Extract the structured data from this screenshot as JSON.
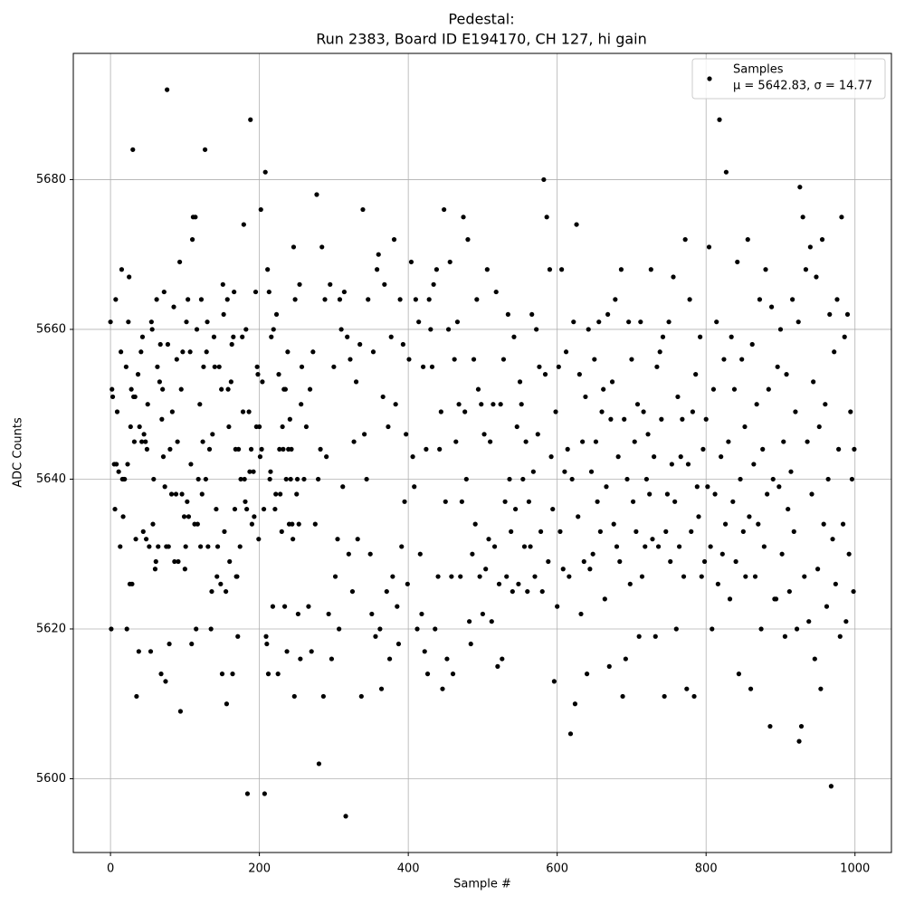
{
  "chart_data": {
    "type": "scatter",
    "title": "Pedestal:",
    "subtitle": "Run 2383, Board ID E194170, CH 127, hi gain",
    "xlabel": "Sample #",
    "ylabel": "ADC Counts",
    "xlim": [
      -49.95,
      1048.95
    ],
    "ylim": [
      5590.15,
      5696.85
    ],
    "xticks": [
      0,
      200,
      400,
      600,
      800,
      1000
    ],
    "yticks": [
      5600,
      5620,
      5640,
      5660,
      5680
    ],
    "grid": true,
    "legend": "upper right",
    "annotation": "μ = 5642.83, σ = 14.77",
    "x": [
      0,
      1,
      2,
      3,
      5,
      6,
      7,
      8,
      9,
      11,
      13,
      14,
      15,
      16,
      17,
      18,
      19,
      21,
      22,
      23,
      24,
      25,
      26,
      27,
      28,
      29,
      30,
      31,
      32,
      33,
      34,
      35,
      37,
      38,
      39,
      41,
      42,
      43,
      44,
      45,
      47,
      48,
      49,
      50,
      52,
      54,
      55,
      56,
      57,
      58,
      60,
      61,
      62,
      63,
      64,
      66,
      67,
      68,
      69,
      70,
      71,
      72,
      73,
      74,
      75,
      76,
      77,
      78,
      79,
      80,
      82,
      83,
      85,
      86,
      88,
      89,
      90,
      91,
      93,
      94,
      95,
      96,
      97,
      99,
      100,
      101,
      102,
      103,
      104,
      105,
      107,
      108,
      109,
      110,
      111,
      113,
      114,
      115,
      116,
      117,
      118,
      120,
      121,
      122,
      123,
      124,
      125,
      127,
      128,
      129,
      130,
      131,
      133,
      135,
      136,
      137,
      139,
      140,
      142,
      143,
      144,
      146,
      148,
      149,
      150,
      151,
      152,
      153,
      155,
      156,
      157,
      158,
      159,
      160,
      162,
      163,
      164,
      165,
      166,
      167,
      168,
      169,
      170,
      171,
      172,
      174,
      175,
      177,
      178,
      179,
      180,
      181,
      182,
      183,
      184,
      186,
      187,
      188,
      189,
      190,
      192,
      193,
      195,
      196,
      197,
      198,
      199,
      200,
      201,
      202,
      203,
      204,
      206,
      207,
      208,
      209,
      210,
      211,
      212,
      213,
      214,
      215,
      216,
      218,
      219,
      221,
      222,
      223,
      225,
      226,
      227,
      228,
      230,
      231,
      232,
      233,
      234,
      235,
      236,
      237,
      238,
      239,
      240,
      241,
      242,
      243,
      244,
      245,
      246,
      247,
      248,
      250,
      251,
      252,
      253,
      254,
      255,
      256,
      257,
      260,
      263,
      266,
      268,
      270,
      272,
      275,
      277,
      279,
      280,
      282,
      284,
      286,
      288,
      290,
      293,
      295,
      297,
      300,
      302,
      305,
      307,
      308,
      310,
      312,
      314,
      316,
      318,
      320,
      322,
      325,
      327,
      330,
      332,
      335,
      337,
      339,
      341,
      344,
      346,
      349,
      351,
      353,
      356,
      358,
      360,
      362,
      364,
      366,
      368,
      371,
      373,
      375,
      377,
      379,
      381,
      383,
      385,
      387,
      389,
      391,
      393,
      395,
      397,
      399,
      401,
      404,
      406,
      408,
      410,
      412,
      414,
      416,
      418,
      420,
      422,
      424,
      426,
      428,
      430,
      432,
      434,
      436,
      438,
      440,
      442,
      444,
      446,
      448,
      450,
      452,
      454,
      456,
      458,
      460,
      462,
      464,
      466,
      468,
      470,
      472,
      474,
      476,
      478,
      480,
      482,
      484,
      486,
      488,
      490,
      492,
      494,
      496,
      498,
      500,
      502,
      504,
      506,
      508,
      510,
      512,
      514,
      516,
      518,
      520,
      522,
      524,
      526,
      528,
      530,
      532,
      534,
      536,
      538,
      540,
      542,
      544,
      546,
      548,
      550,
      552,
      554,
      556,
      558,
      560,
      562,
      564,
      566,
      568,
      570,
      572,
      574,
      576,
      578,
      580,
      582,
      584,
      586,
      588,
      590,
      592,
      594,
      596,
      598,
      600,
      602,
      604,
      606,
      608,
      610,
      612,
      614,
      616,
      618,
      620,
      622,
      624,
      626,
      628,
      630,
      632,
      634,
      636,
      638,
      640,
      642,
      644,
      646,
      648,
      650,
      652,
      654,
      656,
      658,
      660,
      662,
      664,
      666,
      668,
      670,
      672,
      674,
      676,
      678,
      680,
      682,
      684,
      686,
      688,
      690,
      692,
      694,
      696,
      698,
      700,
      702,
      704,
      706,
      708,
      710,
      712,
      714,
      716,
      718,
      720,
      722,
      724,
      726,
      728,
      730,
      732,
      734,
      736,
      738,
      740,
      742,
      744,
      746,
      748,
      750,
      752,
      754,
      756,
      758,
      760,
      762,
      764,
      766,
      768,
      770,
      772,
      774,
      776,
      778,
      780,
      782,
      784,
      786,
      788,
      790,
      792,
      794,
      796,
      798,
      800,
      802,
      804,
      806,
      808,
      810,
      812,
      814,
      816,
      818,
      820,
      822,
      824,
      826,
      827,
      830,
      832,
      834,
      836,
      838,
      840,
      842,
      844,
      846,
      848,
      850,
      852,
      853,
      856,
      858,
      860,
      862,
      864,
      866,
      868,
      870,
      872,
      874,
      876,
      878,
      880,
      882,
      884,
      886,
      888,
      890,
      892,
      894,
      896,
      898,
      900,
      902,
      904,
      906,
      908,
      910,
      912,
      914,
      916,
      918,
      920,
      922,
      924,
      925,
      926,
      928,
      930,
      932,
      934,
      936,
      938,
      940,
      942,
      944,
      946,
      948,
      950,
      952,
      954,
      956,
      958,
      960,
      962,
      964,
      966,
      968,
      970,
      972,
      974,
      976,
      978,
      980,
      982,
      984,
      986,
      988,
      990,
      992,
      994,
      996,
      998,
      999
    ],
    "series": [
      {
        "name": "Samples",
        "color": "#000000",
        "values": [
          5661,
          5620,
          5652,
          5651,
          5642,
          5636,
          5664,
          5642,
          5649,
          5641,
          5631,
          5657,
          5668,
          5640,
          5635,
          5640,
          5640,
          5655,
          5620,
          5642,
          5661,
          5667,
          5626,
          5647,
          5652,
          5626,
          5684,
          5651,
          5645,
          5651,
          5632,
          5611,
          5654,
          5617,
          5647,
          5657,
          5645,
          5659,
          5633,
          5646,
          5645,
          5632,
          5644,
          5650,
          5631,
          5617,
          5661,
          5660,
          5634,
          5640,
          5628,
          5629,
          5664,
          5655,
          5631,
          5653,
          5658,
          5614,
          5648,
          5652,
          5643,
          5665,
          5639,
          5613,
          5631,
          5692,
          5658,
          5631,
          5618,
          5644,
          5638,
          5649,
          5663,
          5629,
          5638,
          5656,
          5645,
          5629,
          5669,
          5609,
          5652,
          5638,
          5657,
          5635,
          5628,
          5631,
          5661,
          5637,
          5664,
          5635,
          5657,
          5642,
          5618,
          5672,
          5675,
          5634,
          5675,
          5620,
          5660,
          5634,
          5640,
          5650,
          5631,
          5664,
          5638,
          5645,
          5655,
          5684,
          5640,
          5657,
          5661,
          5631,
          5644,
          5620,
          5625,
          5646,
          5659,
          5655,
          5636,
          5627,
          5631,
          5655,
          5626,
          5652,
          5614,
          5666,
          5662,
          5633,
          5625,
          5610,
          5664,
          5652,
          5647,
          5629,
          5653,
          5658,
          5614,
          5659,
          5665,
          5636,
          5644,
          5627,
          5627,
          5619,
          5644,
          5631,
          5640,
          5659,
          5649,
          5674,
          5640,
          5637,
          5660,
          5636,
          5598,
          5649,
          5641,
          5688,
          5644,
          5634,
          5641,
          5635,
          5665,
          5647,
          5655,
          5654,
          5632,
          5647,
          5643,
          5676,
          5644,
          5653,
          5636,
          5598,
          5681,
          5619,
          5618,
          5668,
          5614,
          5665,
          5640,
          5641,
          5659,
          5623,
          5660,
          5636,
          5638,
          5662,
          5614,
          5654,
          5644,
          5638,
          5633,
          5647,
          5644,
          5652,
          5623,
          5652,
          5640,
          5617,
          5657,
          5644,
          5634,
          5648,
          5640,
          5644,
          5634,
          5632,
          5671,
          5611,
          5664,
          5638,
          5640,
          5622,
          5634,
          5666,
          5616,
          5650,
          5655,
          5640,
          5647,
          5623,
          5652,
          5617,
          5657,
          5634,
          5678,
          5640,
          5602,
          5644,
          5671,
          5611,
          5664,
          5643,
          5622,
          5666,
          5616,
          5655,
          5627,
          5632,
          5620,
          5664,
          5660,
          5639,
          5665,
          5595,
          5659,
          5630,
          5656,
          5625,
          5645,
          5653,
          5632,
          5658,
          5611,
          5676,
          5646,
          5640,
          5664,
          5630,
          5622,
          5657,
          5619,
          5668,
          5670,
          5620,
          5612,
          5651,
          5666,
          5625,
          5647,
          5616,
          5659,
          5627,
          5672,
          5650,
          5623,
          5618,
          5664,
          5631,
          5658,
          5637,
          5646,
          5626,
          5656,
          5669,
          5643,
          5639,
          5664,
          5620,
          5661,
          5630,
          5622,
          5655,
          5617,
          5644,
          5614,
          5664,
          5660,
          5655,
          5666,
          5620,
          5668,
          5627,
          5644,
          5649,
          5612,
          5676,
          5637,
          5616,
          5660,
          5669,
          5627,
          5614,
          5656,
          5645,
          5661,
          5650,
          5627,
          5637,
          5675,
          5649,
          5640,
          5672,
          5621,
          5618,
          5630,
          5656,
          5634,
          5664,
          5652,
          5627,
          5650,
          5622,
          5646,
          5628,
          5668,
          5632,
          5645,
          5621,
          5650,
          5631,
          5665,
          5615,
          5626,
          5650,
          5616,
          5656,
          5637,
          5627,
          5662,
          5640,
          5633,
          5625,
          5659,
          5636,
          5647,
          5626,
          5653,
          5650,
          5640,
          5631,
          5645,
          5625,
          5637,
          5631,
          5662,
          5641,
          5627,
          5660,
          5646,
          5655,
          5633,
          5625,
          5680,
          5654,
          5675,
          5629,
          5668,
          5643,
          5636,
          5613,
          5649,
          5623,
          5655,
          5633,
          5668,
          5628,
          5641,
          5657,
          5644,
          5627,
          5606,
          5640,
          5661,
          5610,
          5674,
          5635,
          5654,
          5622,
          5645,
          5629,
          5651,
          5614,
          5660,
          5628,
          5641,
          5630,
          5656,
          5645,
          5637,
          5661,
          5633,
          5649,
          5652,
          5624,
          5639,
          5662,
          5615,
          5648,
          5653,
          5634,
          5664,
          5631,
          5643,
          5629,
          5668,
          5611,
          5648,
          5616,
          5640,
          5661,
          5626,
          5656,
          5637,
          5645,
          5633,
          5650,
          5619,
          5661,
          5627,
          5649,
          5631,
          5640,
          5646,
          5638,
          5668,
          5632,
          5643,
          5619,
          5655,
          5631,
          5657,
          5648,
          5659,
          5611,
          5633,
          5638,
          5661,
          5629,
          5642,
          5667,
          5637,
          5620,
          5651,
          5631,
          5643,
          5648,
          5627,
          5672,
          5612,
          5642,
          5664,
          5633,
          5649,
          5611,
          5654,
          5639,
          5635,
          5659,
          5627,
          5644,
          5629,
          5648,
          5639,
          5671,
          5631,
          5620,
          5652,
          5638,
          5661,
          5626,
          5688,
          5643,
          5630,
          5656,
          5634,
          5681,
          5645,
          5624,
          5659,
          5637,
          5652,
          5629,
          5669,
          5614,
          5640,
          5656,
          5633,
          5647,
          5627,
          5672,
          5635,
          5612,
          5658,
          5642,
          5627,
          5650,
          5634,
          5664,
          5620,
          5644,
          5631,
          5668,
          5638,
          5652,
          5607,
          5663,
          5640,
          5624,
          5624,
          5655,
          5639,
          5660,
          5630,
          5645,
          5619,
          5654,
          5636,
          5625,
          5641,
          5664,
          5633,
          5649,
          5620,
          5661,
          5605,
          5679,
          5607,
          5675,
          5627,
          5668,
          5645,
          5621,
          5671,
          5638,
          5653,
          5616,
          5667,
          5628,
          5647,
          5612,
          5672,
          5634,
          5650,
          5623,
          5640,
          5662,
          5599,
          5632,
          5657,
          5626,
          5664,
          5644,
          5619,
          5675,
          5634,
          5659,
          5621,
          5662,
          5630,
          5649,
          5640,
          5625,
          5644
        ]
      }
    ]
  }
}
